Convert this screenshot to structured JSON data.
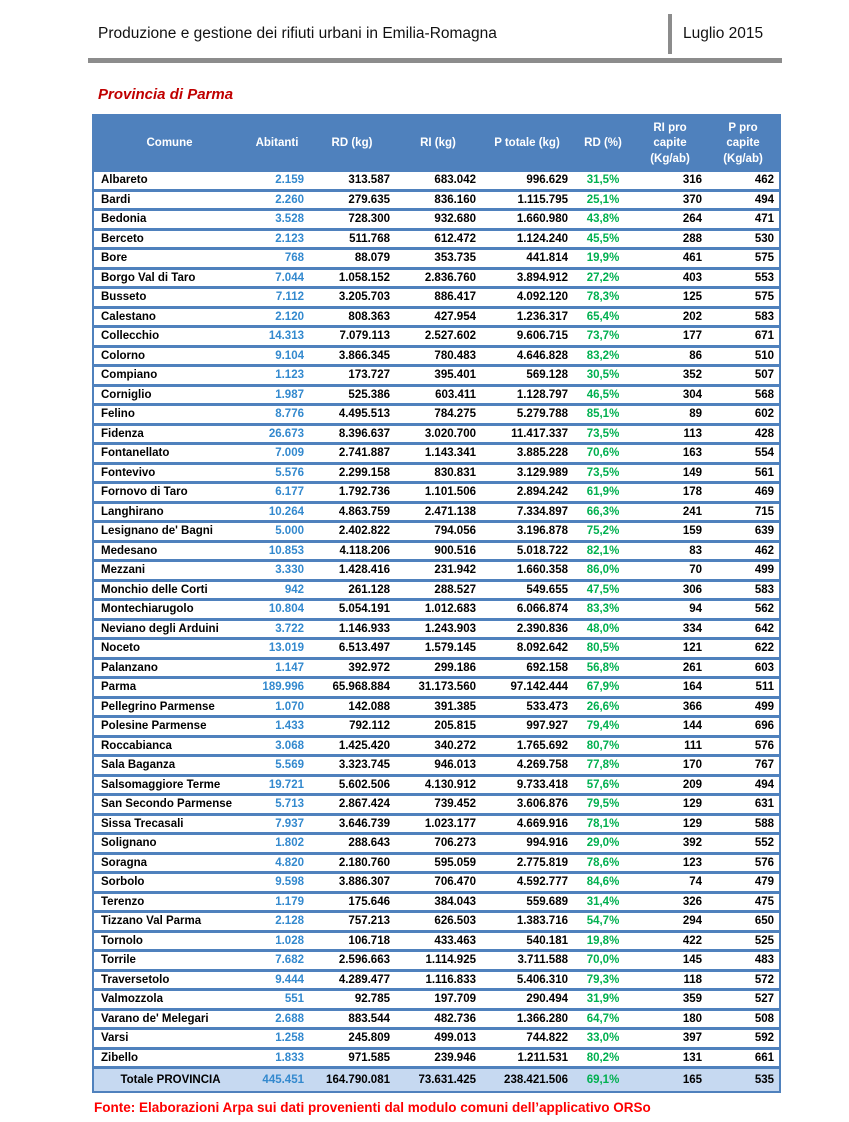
{
  "page": {
    "header_title": "Produzione e gestione dei rifiuti urbani in Emilia-Romagna",
    "header_date": "Luglio 2015",
    "section_title": "Provincia di Parma",
    "source_note": "Fonte: Elaborazioni Arpa sui dati provenienti dal modulo comuni dell’applicativo ORSo"
  },
  "colors": {
    "table_header_bg": "#4f81bd",
    "row_border_blue": "#4f81bd",
    "total_row_bg": "#c6d9f1",
    "abitanti_text": "#3389ce",
    "rd_percent_text": "#00b050",
    "section_title_red": "#c00000",
    "source_note_red": "#fe0000",
    "rule_gray": "#8c8c8c"
  },
  "table": {
    "columns": [
      "Comune",
      "Abitanti",
      "RD (kg)",
      "RI (kg)",
      "P totale (kg)",
      "RD (%)",
      "RI pro capite\n(Kg/ab)",
      "P pro capite\n(Kg/ab)"
    ],
    "rows": [
      {
        "comune": "Albareto",
        "abitanti": "2.159",
        "rd_kg": "313.587",
        "ri_kg": "683.042",
        "p_totale_kg": "996.629",
        "rd_pct": "31,5%",
        "ri_pro_capite": "316",
        "p_pro_capite": "462"
      },
      {
        "comune": "Bardi",
        "abitanti": "2.260",
        "rd_kg": "279.635",
        "ri_kg": "836.160",
        "p_totale_kg": "1.115.795",
        "rd_pct": "25,1%",
        "ri_pro_capite": "370",
        "p_pro_capite": "494"
      },
      {
        "comune": "Bedonia",
        "abitanti": "3.528",
        "rd_kg": "728.300",
        "ri_kg": "932.680",
        "p_totale_kg": "1.660.980",
        "rd_pct": "43,8%",
        "ri_pro_capite": "264",
        "p_pro_capite": "471"
      },
      {
        "comune": "Berceto",
        "abitanti": "2.123",
        "rd_kg": "511.768",
        "ri_kg": "612.472",
        "p_totale_kg": "1.124.240",
        "rd_pct": "45,5%",
        "ri_pro_capite": "288",
        "p_pro_capite": "530"
      },
      {
        "comune": "Bore",
        "abitanti": "768",
        "rd_kg": "88.079",
        "ri_kg": "353.735",
        "p_totale_kg": "441.814",
        "rd_pct": "19,9%",
        "ri_pro_capite": "461",
        "p_pro_capite": "575"
      },
      {
        "comune": "Borgo Val di Taro",
        "abitanti": "7.044",
        "rd_kg": "1.058.152",
        "ri_kg": "2.836.760",
        "p_totale_kg": "3.894.912",
        "rd_pct": "27,2%",
        "ri_pro_capite": "403",
        "p_pro_capite": "553"
      },
      {
        "comune": "Busseto",
        "abitanti": "7.112",
        "rd_kg": "3.205.703",
        "ri_kg": "886.417",
        "p_totale_kg": "4.092.120",
        "rd_pct": "78,3%",
        "ri_pro_capite": "125",
        "p_pro_capite": "575"
      },
      {
        "comune": "Calestano",
        "abitanti": "2.120",
        "rd_kg": "808.363",
        "ri_kg": "427.954",
        "p_totale_kg": "1.236.317",
        "rd_pct": "65,4%",
        "ri_pro_capite": "202",
        "p_pro_capite": "583"
      },
      {
        "comune": "Collecchio",
        "abitanti": "14.313",
        "rd_kg": "7.079.113",
        "ri_kg": "2.527.602",
        "p_totale_kg": "9.606.715",
        "rd_pct": "73,7%",
        "ri_pro_capite": "177",
        "p_pro_capite": "671"
      },
      {
        "comune": "Colorno",
        "abitanti": "9.104",
        "rd_kg": "3.866.345",
        "ri_kg": "780.483",
        "p_totale_kg": "4.646.828",
        "rd_pct": "83,2%",
        "ri_pro_capite": "86",
        "p_pro_capite": "510"
      },
      {
        "comune": "Compiano",
        "abitanti": "1.123",
        "rd_kg": "173.727",
        "ri_kg": "395.401",
        "p_totale_kg": "569.128",
        "rd_pct": "30,5%",
        "ri_pro_capite": "352",
        "p_pro_capite": "507"
      },
      {
        "comune": "Corniglio",
        "abitanti": "1.987",
        "rd_kg": "525.386",
        "ri_kg": "603.411",
        "p_totale_kg": "1.128.797",
        "rd_pct": "46,5%",
        "ri_pro_capite": "304",
        "p_pro_capite": "568"
      },
      {
        "comune": "Felino",
        "abitanti": "8.776",
        "rd_kg": "4.495.513",
        "ri_kg": "784.275",
        "p_totale_kg": "5.279.788",
        "rd_pct": "85,1%",
        "ri_pro_capite": "89",
        "p_pro_capite": "602"
      },
      {
        "comune": "Fidenza",
        "abitanti": "26.673",
        "rd_kg": "8.396.637",
        "ri_kg": "3.020.700",
        "p_totale_kg": "11.417.337",
        "rd_pct": "73,5%",
        "ri_pro_capite": "113",
        "p_pro_capite": "428"
      },
      {
        "comune": "Fontanellato",
        "abitanti": "7.009",
        "rd_kg": "2.741.887",
        "ri_kg": "1.143.341",
        "p_totale_kg": "3.885.228",
        "rd_pct": "70,6%",
        "ri_pro_capite": "163",
        "p_pro_capite": "554"
      },
      {
        "comune": "Fontevivo",
        "abitanti": "5.576",
        "rd_kg": "2.299.158",
        "ri_kg": "830.831",
        "p_totale_kg": "3.129.989",
        "rd_pct": "73,5%",
        "ri_pro_capite": "149",
        "p_pro_capite": "561"
      },
      {
        "comune": "Fornovo di Taro",
        "abitanti": "6.177",
        "rd_kg": "1.792.736",
        "ri_kg": "1.101.506",
        "p_totale_kg": "2.894.242",
        "rd_pct": "61,9%",
        "ri_pro_capite": "178",
        "p_pro_capite": "469"
      },
      {
        "comune": "Langhirano",
        "abitanti": "10.264",
        "rd_kg": "4.863.759",
        "ri_kg": "2.471.138",
        "p_totale_kg": "7.334.897",
        "rd_pct": "66,3%",
        "ri_pro_capite": "241",
        "p_pro_capite": "715"
      },
      {
        "comune": "Lesignano de' Bagni",
        "abitanti": "5.000",
        "rd_kg": "2.402.822",
        "ri_kg": "794.056",
        "p_totale_kg": "3.196.878",
        "rd_pct": "75,2%",
        "ri_pro_capite": "159",
        "p_pro_capite": "639"
      },
      {
        "comune": "Medesano",
        "abitanti": "10.853",
        "rd_kg": "4.118.206",
        "ri_kg": "900.516",
        "p_totale_kg": "5.018.722",
        "rd_pct": "82,1%",
        "ri_pro_capite": "83",
        "p_pro_capite": "462"
      },
      {
        "comune": "Mezzani",
        "abitanti": "3.330",
        "rd_kg": "1.428.416",
        "ri_kg": "231.942",
        "p_totale_kg": "1.660.358",
        "rd_pct": "86,0%",
        "ri_pro_capite": "70",
        "p_pro_capite": "499"
      },
      {
        "comune": "Monchio delle Corti",
        "abitanti": "942",
        "rd_kg": "261.128",
        "ri_kg": "288.527",
        "p_totale_kg": "549.655",
        "rd_pct": "47,5%",
        "ri_pro_capite": "306",
        "p_pro_capite": "583"
      },
      {
        "comune": "Montechiarugolo",
        "abitanti": "10.804",
        "rd_kg": "5.054.191",
        "ri_kg": "1.012.683",
        "p_totale_kg": "6.066.874",
        "rd_pct": "83,3%",
        "ri_pro_capite": "94",
        "p_pro_capite": "562"
      },
      {
        "comune": "Neviano degli Arduini",
        "abitanti": "3.722",
        "rd_kg": "1.146.933",
        "ri_kg": "1.243.903",
        "p_totale_kg": "2.390.836",
        "rd_pct": "48,0%",
        "ri_pro_capite": "334",
        "p_pro_capite": "642"
      },
      {
        "comune": "Noceto",
        "abitanti": "13.019",
        "rd_kg": "6.513.497",
        "ri_kg": "1.579.145",
        "p_totale_kg": "8.092.642",
        "rd_pct": "80,5%",
        "ri_pro_capite": "121",
        "p_pro_capite": "622"
      },
      {
        "comune": "Palanzano",
        "abitanti": "1.147",
        "rd_kg": "392.972",
        "ri_kg": "299.186",
        "p_totale_kg": "692.158",
        "rd_pct": "56,8%",
        "ri_pro_capite": "261",
        "p_pro_capite": "603"
      },
      {
        "comune": "Parma",
        "abitanti": "189.996",
        "rd_kg": "65.968.884",
        "ri_kg": "31.173.560",
        "p_totale_kg": "97.142.444",
        "rd_pct": "67,9%",
        "ri_pro_capite": "164",
        "p_pro_capite": "511"
      },
      {
        "comune": "Pellegrino Parmense",
        "abitanti": "1.070",
        "rd_kg": "142.088",
        "ri_kg": "391.385",
        "p_totale_kg": "533.473",
        "rd_pct": "26,6%",
        "ri_pro_capite": "366",
        "p_pro_capite": "499"
      },
      {
        "comune": "Polesine Parmense",
        "abitanti": "1.433",
        "rd_kg": "792.112",
        "ri_kg": "205.815",
        "p_totale_kg": "997.927",
        "rd_pct": "79,4%",
        "ri_pro_capite": "144",
        "p_pro_capite": "696"
      },
      {
        "comune": "Roccabianca",
        "abitanti": "3.068",
        "rd_kg": "1.425.420",
        "ri_kg": "340.272",
        "p_totale_kg": "1.765.692",
        "rd_pct": "80,7%",
        "ri_pro_capite": "111",
        "p_pro_capite": "576"
      },
      {
        "comune": "Sala Baganza",
        "abitanti": "5.569",
        "rd_kg": "3.323.745",
        "ri_kg": "946.013",
        "p_totale_kg": "4.269.758",
        "rd_pct": "77,8%",
        "ri_pro_capite": "170",
        "p_pro_capite": "767"
      },
      {
        "comune": "Salsomaggiore Terme",
        "abitanti": "19.721",
        "rd_kg": "5.602.506",
        "ri_kg": "4.130.912",
        "p_totale_kg": "9.733.418",
        "rd_pct": "57,6%",
        "ri_pro_capite": "209",
        "p_pro_capite": "494"
      },
      {
        "comune": "San Secondo Parmense",
        "abitanti": "5.713",
        "rd_kg": "2.867.424",
        "ri_kg": "739.452",
        "p_totale_kg": "3.606.876",
        "rd_pct": "79,5%",
        "ri_pro_capite": "129",
        "p_pro_capite": "631"
      },
      {
        "comune": "Sissa Trecasali",
        "abitanti": "7.937",
        "rd_kg": "3.646.739",
        "ri_kg": "1.023.177",
        "p_totale_kg": "4.669.916",
        "rd_pct": "78,1%",
        "ri_pro_capite": "129",
        "p_pro_capite": "588"
      },
      {
        "comune": "Solignano",
        "abitanti": "1.802",
        "rd_kg": "288.643",
        "ri_kg": "706.273",
        "p_totale_kg": "994.916",
        "rd_pct": "29,0%",
        "ri_pro_capite": "392",
        "p_pro_capite": "552"
      },
      {
        "comune": "Soragna",
        "abitanti": "4.820",
        "rd_kg": "2.180.760",
        "ri_kg": "595.059",
        "p_totale_kg": "2.775.819",
        "rd_pct": "78,6%",
        "ri_pro_capite": "123",
        "p_pro_capite": "576"
      },
      {
        "comune": "Sorbolo",
        "abitanti": "9.598",
        "rd_kg": "3.886.307",
        "ri_kg": "706.470",
        "p_totale_kg": "4.592.777",
        "rd_pct": "84,6%",
        "ri_pro_capite": "74",
        "p_pro_capite": "479"
      },
      {
        "comune": "Terenzo",
        "abitanti": "1.179",
        "rd_kg": "175.646",
        "ri_kg": "384.043",
        "p_totale_kg": "559.689",
        "rd_pct": "31,4%",
        "ri_pro_capite": "326",
        "p_pro_capite": "475"
      },
      {
        "comune": "Tizzano Val Parma",
        "abitanti": "2.128",
        "rd_kg": "757.213",
        "ri_kg": "626.503",
        "p_totale_kg": "1.383.716",
        "rd_pct": "54,7%",
        "ri_pro_capite": "294",
        "p_pro_capite": "650"
      },
      {
        "comune": "Tornolo",
        "abitanti": "1.028",
        "rd_kg": "106.718",
        "ri_kg": "433.463",
        "p_totale_kg": "540.181",
        "rd_pct": "19,8%",
        "ri_pro_capite": "422",
        "p_pro_capite": "525"
      },
      {
        "comune": "Torrile",
        "abitanti": "7.682",
        "rd_kg": "2.596.663",
        "ri_kg": "1.114.925",
        "p_totale_kg": "3.711.588",
        "rd_pct": "70,0%",
        "ri_pro_capite": "145",
        "p_pro_capite": "483"
      },
      {
        "comune": "Traversetolo",
        "abitanti": "9.444",
        "rd_kg": "4.289.477",
        "ri_kg": "1.116.833",
        "p_totale_kg": "5.406.310",
        "rd_pct": "79,3%",
        "ri_pro_capite": "118",
        "p_pro_capite": "572"
      },
      {
        "comune": "Valmozzola",
        "abitanti": "551",
        "rd_kg": "92.785",
        "ri_kg": "197.709",
        "p_totale_kg": "290.494",
        "rd_pct": "31,9%",
        "ri_pro_capite": "359",
        "p_pro_capite": "527"
      },
      {
        "comune": "Varano de' Melegari",
        "abitanti": "2.688",
        "rd_kg": "883.544",
        "ri_kg": "482.736",
        "p_totale_kg": "1.366.280",
        "rd_pct": "64,7%",
        "ri_pro_capite": "180",
        "p_pro_capite": "508"
      },
      {
        "comune": "Varsi",
        "abitanti": "1.258",
        "rd_kg": "245.809",
        "ri_kg": "499.013",
        "p_totale_kg": "744.822",
        "rd_pct": "33,0%",
        "ri_pro_capite": "397",
        "p_pro_capite": "592"
      },
      {
        "comune": "Zibello",
        "abitanti": "1.833",
        "rd_kg": "971.585",
        "ri_kg": "239.946",
        "p_totale_kg": "1.211.531",
        "rd_pct": "80,2%",
        "ri_pro_capite": "131",
        "p_pro_capite": "661"
      }
    ],
    "total": {
      "comune": "Totale PROVINCIA",
      "abitanti": "445.451",
      "rd_kg": "164.790.081",
      "ri_kg": "73.631.425",
      "p_totale_kg": "238.421.506",
      "rd_pct": "69,1%",
      "ri_pro_capite": "165",
      "p_pro_capite": "535"
    }
  }
}
